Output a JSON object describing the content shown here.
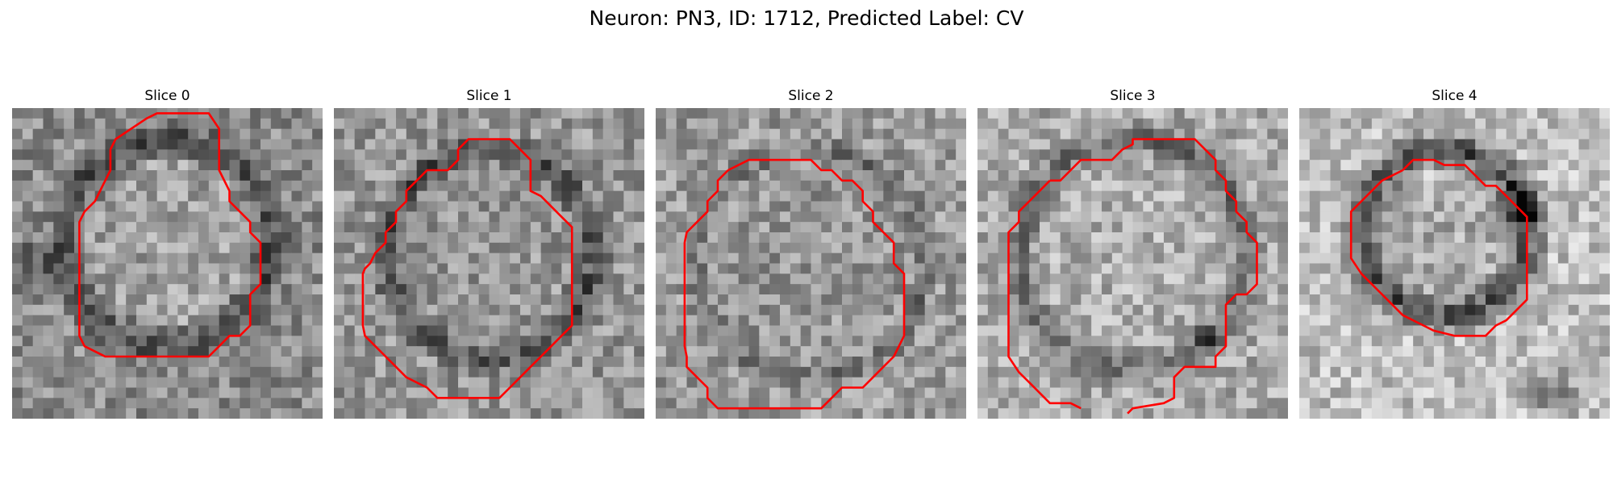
{
  "figure": {
    "title": "Neuron: PN3, ID: 1712, Predicted Label: CV"
  },
  "slices": [
    {
      "title": "Slice 0"
    },
    {
      "title": "Slice 1"
    },
    {
      "title": "Slice 2"
    },
    {
      "title": "Slice 3"
    },
    {
      "title": "Slice 4"
    }
  ],
  "colors": {
    "contour": "#ff0000",
    "background": "#ffffff",
    "text": "#000000"
  }
}
